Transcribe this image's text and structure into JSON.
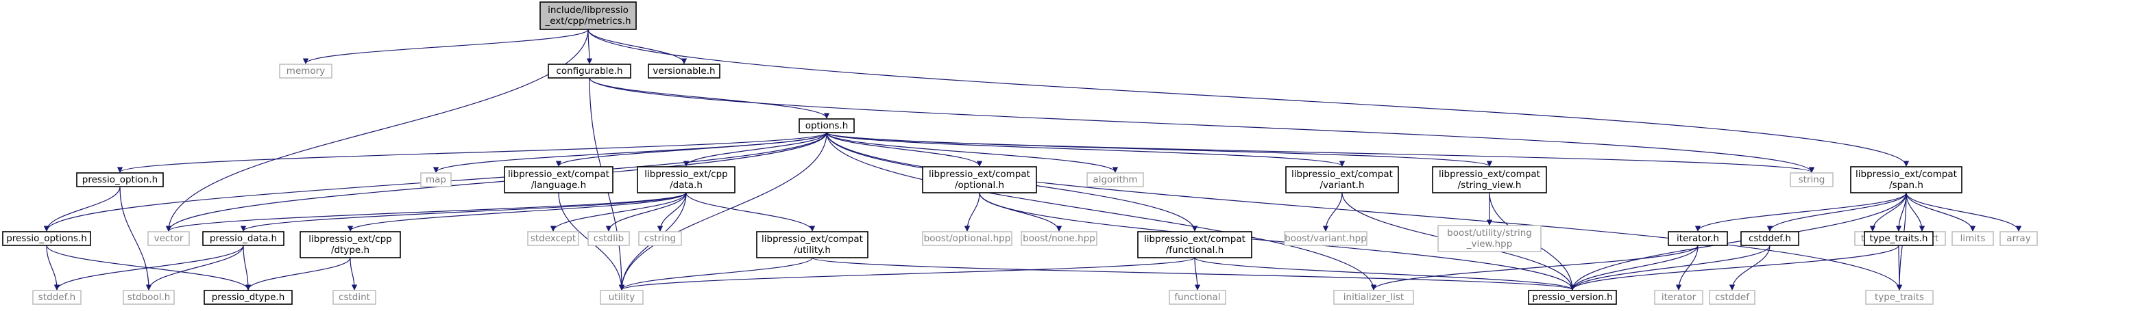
{
  "colors": {
    "edge": "#191970",
    "root_fill": "#bfbfbf",
    "node_stroke": "#000000",
    "ext_stroke": "#bfbfbf",
    "ext_text": "#808080"
  },
  "nodes": {
    "metrics": "include/libpressio\n_ext/cpp/metrics.h",
    "memory": "memory",
    "configurable": "configurable.h",
    "versionable": "versionable.h",
    "options": "options.h",
    "string": "string",
    "span": "libpressio_ext/compat\n/span.h",
    "pressio_option": "pressio_option.h",
    "map": "map",
    "language": "libpressio_ext/compat\n/language.h",
    "data": "libpressio_ext/cpp\n/data.h",
    "optional": "libpressio_ext/compat\n/optional.h",
    "algorithm": "algorithm",
    "variant": "libpressio_ext/compat\n/variant.h",
    "string_view": "libpressio_ext/compat\n/string_view.h",
    "tuple": "tuple",
    "cassert": "cassert",
    "limits": "limits",
    "array": "array",
    "vector": "vector",
    "pressio_options": "pressio_options.h",
    "pressio_data": "pressio_data.h",
    "dtype": "libpressio_ext/cpp\n/dtype.h",
    "stdexcept": "stdexcept",
    "cstdlib": "cstdlib",
    "cstring": "cstring",
    "utility_h": "libpressio_ext/compat\n/utility.h",
    "boost_optional": "boost/optional.hpp",
    "boost_none": "boost/none.hpp",
    "functional_h": "libpressio_ext/compat\n/functional.h",
    "boost_variant": "boost/variant.hpp",
    "boost_sv": "boost/utility/string\n_view.hpp",
    "iterator_h": "iterator.h",
    "cstddef_h": "cstddef.h",
    "type_traits_h": "type_traits.h",
    "stddef": "stddef.h",
    "stdbool": "stdbool.h",
    "pressio_dtype": "pressio_dtype.h",
    "utility": "utility",
    "cstdint": "cstdint",
    "functional": "functional",
    "initializer_list": "initializer_list",
    "pressio_version": "pressio_version.h",
    "iterator": "iterator",
    "cstddef": "cstddef",
    "type_traits": "type_traits"
  }
}
